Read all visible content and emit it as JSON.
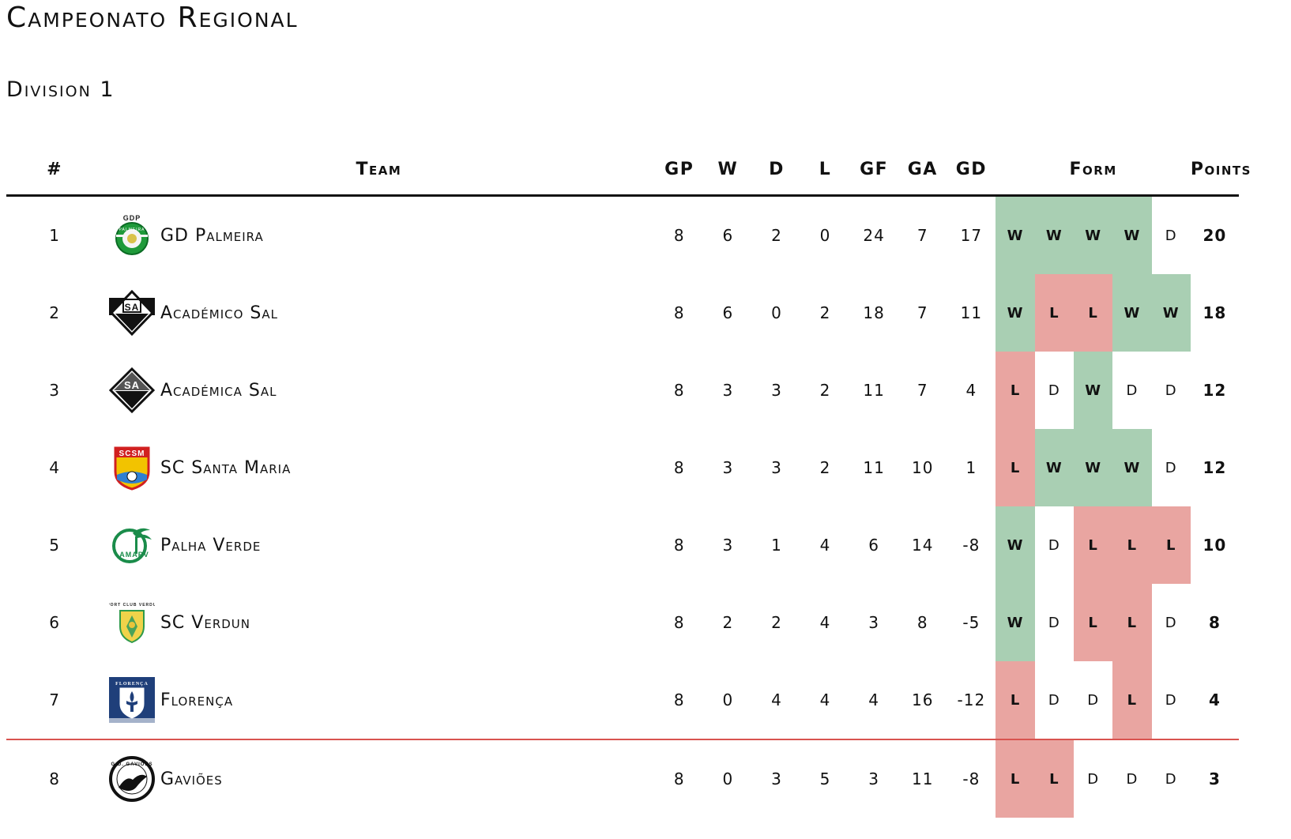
{
  "title": "Campeonato Regional",
  "subtitle": "Division 1",
  "columns": {
    "pos": "#",
    "team": "Team",
    "gp": "GP",
    "w": "W",
    "d": "D",
    "l": "L",
    "gf": "GF",
    "ga": "GA",
    "gd": "GD",
    "form": "Form",
    "points": "Points"
  },
  "colors": {
    "win": "#a9cfb3",
    "loss": "#e9a5a1",
    "relegation_line": "#d9534f"
  },
  "rows": [
    {
      "pos": "1",
      "logo": "gd-palmeira-crest-icon",
      "team": "GD Palmeira",
      "gp": "8",
      "w": "6",
      "d": "2",
      "l": "0",
      "gf": "24",
      "ga": "7",
      "gd": "17",
      "form": [
        "W",
        "W",
        "W",
        "W",
        "D"
      ],
      "points": "20"
    },
    {
      "pos": "2",
      "logo": "academico-sal-crest-icon",
      "team": "Académico Sal",
      "gp": "8",
      "w": "6",
      "d": "0",
      "l": "2",
      "gf": "18",
      "ga": "7",
      "gd": "11",
      "form": [
        "W",
        "L",
        "L",
        "W",
        "W"
      ],
      "points": "18"
    },
    {
      "pos": "3",
      "logo": "academica-sal-crest-icon",
      "team": "Académica Sal",
      "gp": "8",
      "w": "3",
      "d": "3",
      "l": "2",
      "gf": "11",
      "ga": "7",
      "gd": "4",
      "form": [
        "L",
        "D",
        "W",
        "D",
        "D"
      ],
      "points": "12"
    },
    {
      "pos": "4",
      "logo": "sc-santa-maria-crest-icon",
      "team": "SC Santa Maria",
      "gp": "8",
      "w": "3",
      "d": "3",
      "l": "2",
      "gf": "11",
      "ga": "10",
      "gd": "1",
      "form": [
        "L",
        "W",
        "W",
        "W",
        "D"
      ],
      "points": "12"
    },
    {
      "pos": "5",
      "logo": "palha-verde-crest-icon",
      "team": "Palha Verde",
      "gp": "8",
      "w": "3",
      "d": "1",
      "l": "4",
      "gf": "6",
      "ga": "14",
      "gd": "-8",
      "form": [
        "W",
        "D",
        "L",
        "L",
        "L"
      ],
      "points": "10"
    },
    {
      "pos": "6",
      "logo": "sc-verdun-crest-icon",
      "team": "SC Verdun",
      "gp": "8",
      "w": "2",
      "d": "2",
      "l": "4",
      "gf": "3",
      "ga": "8",
      "gd": "-5",
      "form": [
        "W",
        "D",
        "L",
        "L",
        "D"
      ],
      "points": "8"
    },
    {
      "pos": "7",
      "logo": "florenca-crest-icon",
      "team": "Florença",
      "gp": "8",
      "w": "0",
      "d": "4",
      "l": "4",
      "gf": "4",
      "ga": "16",
      "gd": "-12",
      "form": [
        "L",
        "D",
        "D",
        "L",
        "D"
      ],
      "points": "4"
    },
    {
      "pos": "8",
      "logo": "gavioes-crest-icon",
      "team": "Gaviões",
      "gp": "8",
      "w": "0",
      "d": "3",
      "l": "5",
      "gf": "3",
      "ga": "11",
      "gd": "-8",
      "form": [
        "L",
        "L",
        "D",
        "D",
        "D"
      ],
      "points": "3"
    }
  ]
}
